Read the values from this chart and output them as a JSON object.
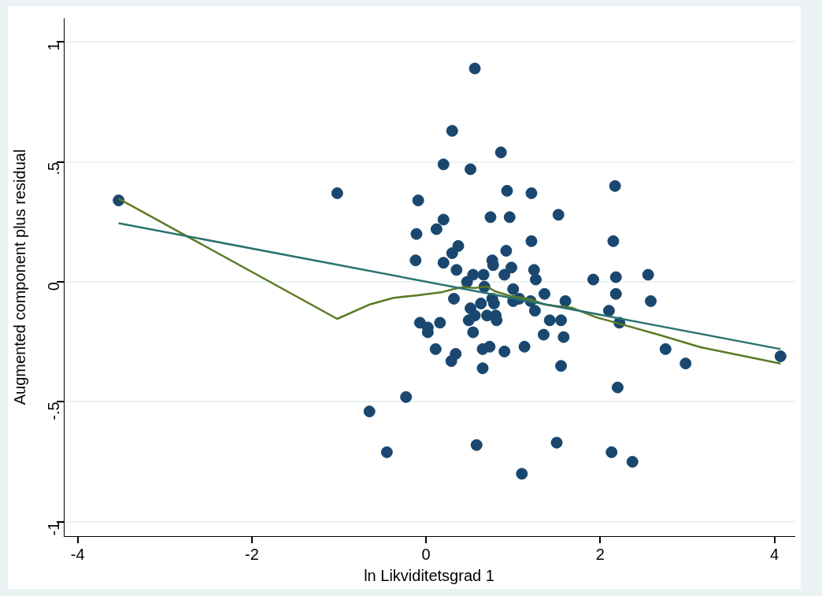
{
  "chart_data": {
    "type": "scatter",
    "xlabel": "ln Likviditetsgrad 1",
    "ylabel": "Augmented component plus residual",
    "xlim": [
      -4.16,
      4.23
    ],
    "ylim": [
      -1.06,
      1.1
    ],
    "xticks": [
      -4,
      -2,
      0,
      2,
      4
    ],
    "yticks": [
      {
        "value": -1,
        "label": "-1"
      },
      {
        "value": -0.5,
        "label": "-.5"
      },
      0,
      {
        "value": 0.5,
        "label": ".5"
      },
      1
    ],
    "grid": "y",
    "legend": false,
    "marker": "circle",
    "series": [
      {
        "color": "#1a476f",
        "x": [
          -3.53,
          -1.02,
          -0.65,
          -0.45,
          -0.23,
          0.56,
          0.3,
          0.86,
          0.2,
          0.51,
          0.93,
          1.21,
          -0.09,
          0.2,
          0.74,
          0.96,
          1.52,
          2.17,
          0.12,
          -0.11,
          0.37,
          1.21,
          0.92,
          0.3,
          -0.12,
          0.2,
          0.35,
          0.76,
          0.77,
          0.54,
          0.66,
          0.9,
          0.98,
          1.24,
          1.26,
          0.47,
          0.67,
          1.0,
          1.36,
          1.6,
          0.32,
          0.76,
          0.78,
          1.0,
          1.07,
          1.2,
          1.25,
          0.63,
          0.51,
          0.56,
          0.49,
          0.7,
          0.8,
          0.81,
          -0.07,
          0.02,
          0.02,
          0.16,
          0.54,
          1.42,
          1.55,
          1.35,
          1.58,
          0.11,
          0.34,
          0.29,
          0.65,
          0.73,
          0.9,
          1.13,
          0.65,
          1.55,
          2.15,
          1.92,
          2.18,
          2.55,
          2.18,
          2.58,
          2.1,
          2.22,
          2.75,
          2.98,
          4.07,
          2.2,
          1.5,
          2.13,
          2.37,
          0.58,
          1.1
        ],
        "values": [
          0.34,
          0.37,
          -0.54,
          -0.71,
          -0.48,
          0.89,
          0.63,
          0.54,
          0.49,
          0.47,
          0.38,
          0.37,
          0.34,
          0.26,
          0.27,
          0.27,
          0.28,
          0.4,
          0.22,
          0.2,
          0.15,
          0.17,
          0.13,
          0.12,
          0.09,
          0.08,
          0.05,
          0.09,
          0.07,
          0.03,
          0.03,
          0.03,
          0.06,
          0.05,
          0.01,
          0.0,
          -0.02,
          -0.03,
          -0.05,
          -0.08,
          -0.07,
          -0.07,
          -0.09,
          -0.08,
          -0.07,
          -0.08,
          -0.12,
          -0.09,
          -0.11,
          -0.14,
          -0.16,
          -0.14,
          -0.14,
          -0.16,
          -0.17,
          -0.19,
          -0.21,
          -0.17,
          -0.21,
          -0.16,
          -0.16,
          -0.22,
          -0.23,
          -0.28,
          -0.3,
          -0.33,
          -0.28,
          -0.27,
          -0.29,
          -0.27,
          -0.36,
          -0.35,
          0.17,
          0.01,
          0.02,
          0.03,
          -0.05,
          -0.08,
          -0.12,
          -0.17,
          -0.28,
          -0.34,
          -0.31,
          -0.44,
          -0.67,
          -0.71,
          -0.75,
          -0.68,
          -0.8
        ]
      },
      {
        "type": "line",
        "marker": "none",
        "color": "#2a7370",
        "x": [
          -3.53,
          4.07
        ],
        "values": [
          0.245,
          -0.28
        ]
      },
      {
        "type": "line",
        "marker": "none",
        "color": "#5b7a25",
        "x": [
          -3.53,
          -1.02,
          -0.64,
          -0.37,
          -0.11,
          0.19,
          0.32,
          0.42,
          0.56,
          0.7,
          0.79,
          0.97,
          1.21,
          1.35,
          1.48,
          1.67,
          1.95,
          2.22,
          2.69,
          3.15,
          4.07
        ],
        "values": [
          0.347,
          -0.154,
          -0.093,
          -0.066,
          -0.056,
          -0.042,
          -0.029,
          -0.022,
          -0.025,
          -0.019,
          -0.039,
          -0.059,
          -0.073,
          -0.093,
          -0.1,
          -0.107,
          -0.147,
          -0.174,
          -0.222,
          -0.272,
          -0.34
        ]
      }
    ]
  }
}
